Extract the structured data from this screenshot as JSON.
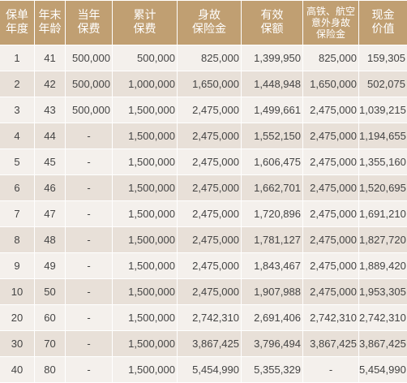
{
  "headers": [
    "保单\n年度",
    "年末\n年龄",
    "当年\n保费",
    "累计\n保费",
    "身故\n保险金",
    "有效\n保额",
    "高铁、航空\n意外身故\n保险金",
    "现金\n价值"
  ],
  "rows": [
    [
      "1",
      "41",
      "500,000",
      "500,000",
      "825,000",
      "1,399,950",
      "825,000",
      "159,305"
    ],
    [
      "2",
      "42",
      "500,000",
      "1,000,000",
      "1,650,000",
      "1,448,948",
      "1,650,000",
      "502,075"
    ],
    [
      "3",
      "43",
      "500,000",
      "1,500,000",
      "2,475,000",
      "1,499,661",
      "2,475,000",
      "1,039,215"
    ],
    [
      "4",
      "44",
      "-",
      "1,500,000",
      "2,475,000",
      "1,552,150",
      "2,475,000",
      "1,194,655"
    ],
    [
      "5",
      "45",
      "-",
      "1,500,000",
      "2,475,000",
      "1,606,475",
      "2,475,000",
      "1,355,160"
    ],
    [
      "6",
      "46",
      "-",
      "1,500,000",
      "2,475,000",
      "1,662,701",
      "2,475,000",
      "1,520,695"
    ],
    [
      "7",
      "47",
      "-",
      "1,500,000",
      "2,475,000",
      "1,720,896",
      "2,475,000",
      "1,691,210"
    ],
    [
      "8",
      "48",
      "-",
      "1,500,000",
      "2,475,000",
      "1,781,127",
      "2,475,000",
      "1,827,720"
    ],
    [
      "9",
      "49",
      "-",
      "1,500,000",
      "2,475,000",
      "1,843,467",
      "2,475,000",
      "1,889,420"
    ],
    [
      "10",
      "50",
      "-",
      "1,500,000",
      "2,475,000",
      "1,907,988",
      "2,475,000",
      "1,953,305"
    ],
    [
      "20",
      "60",
      "-",
      "1,500,000",
      "2,742,310",
      "2,691,406",
      "2,742,310",
      "2,742,310"
    ],
    [
      "30",
      "70",
      "-",
      "1,500,000",
      "3,867,425",
      "3,796,494",
      "3,867,425",
      "3,867,425"
    ],
    [
      "40",
      "80",
      "-",
      "1,500,000",
      "5,454,990",
      "5,355,329",
      "-",
      "5,454,990"
    ]
  ]
}
